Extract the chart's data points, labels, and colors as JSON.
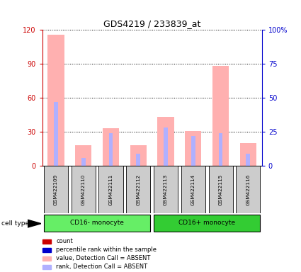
{
  "title": "GDS4219 / 233839_at",
  "samples": [
    "GSM422109",
    "GSM422110",
    "GSM422111",
    "GSM422112",
    "GSM422113",
    "GSM422114",
    "GSM422115",
    "GSM422116"
  ],
  "pink_values": [
    116,
    18,
    33,
    18,
    43,
    31,
    88,
    20
  ],
  "blue_rank": [
    47,
    6,
    24,
    9,
    28,
    22,
    24,
    9
  ],
  "groups": [
    {
      "label": "CD16- monocyte",
      "start": 0,
      "end": 4,
      "color": "#66ee66"
    },
    {
      "label": "CD16+ monocyte",
      "start": 4,
      "end": 8,
      "color": "#33cc33"
    }
  ],
  "ylim_left": [
    0,
    120
  ],
  "ylim_right": [
    0,
    100
  ],
  "yticks_left": [
    0,
    30,
    60,
    90,
    120
  ],
  "yticks_right": [
    0,
    25,
    50,
    75,
    100
  ],
  "ytick_labels_right": [
    "0",
    "25",
    "50",
    "75",
    "100%"
  ],
  "left_tick_color": "#cc0000",
  "right_tick_color": "#0000cc",
  "bar_pink_color": "#ffb0b0",
  "bar_blue_color": "#b0b0ff",
  "legend_items": [
    {
      "label": "count",
      "color": "#cc0000"
    },
    {
      "label": "percentile rank within the sample",
      "color": "#0000cc"
    },
    {
      "label": "value, Detection Call = ABSENT",
      "color": "#ffb0b0"
    },
    {
      "label": "rank, Detection Call = ABSENT",
      "color": "#b0b0ff"
    }
  ],
  "cell_type_label": "cell type",
  "bg_color": "#ffffff",
  "sample_box_color": "#cccccc",
  "grid_color": "#000000"
}
